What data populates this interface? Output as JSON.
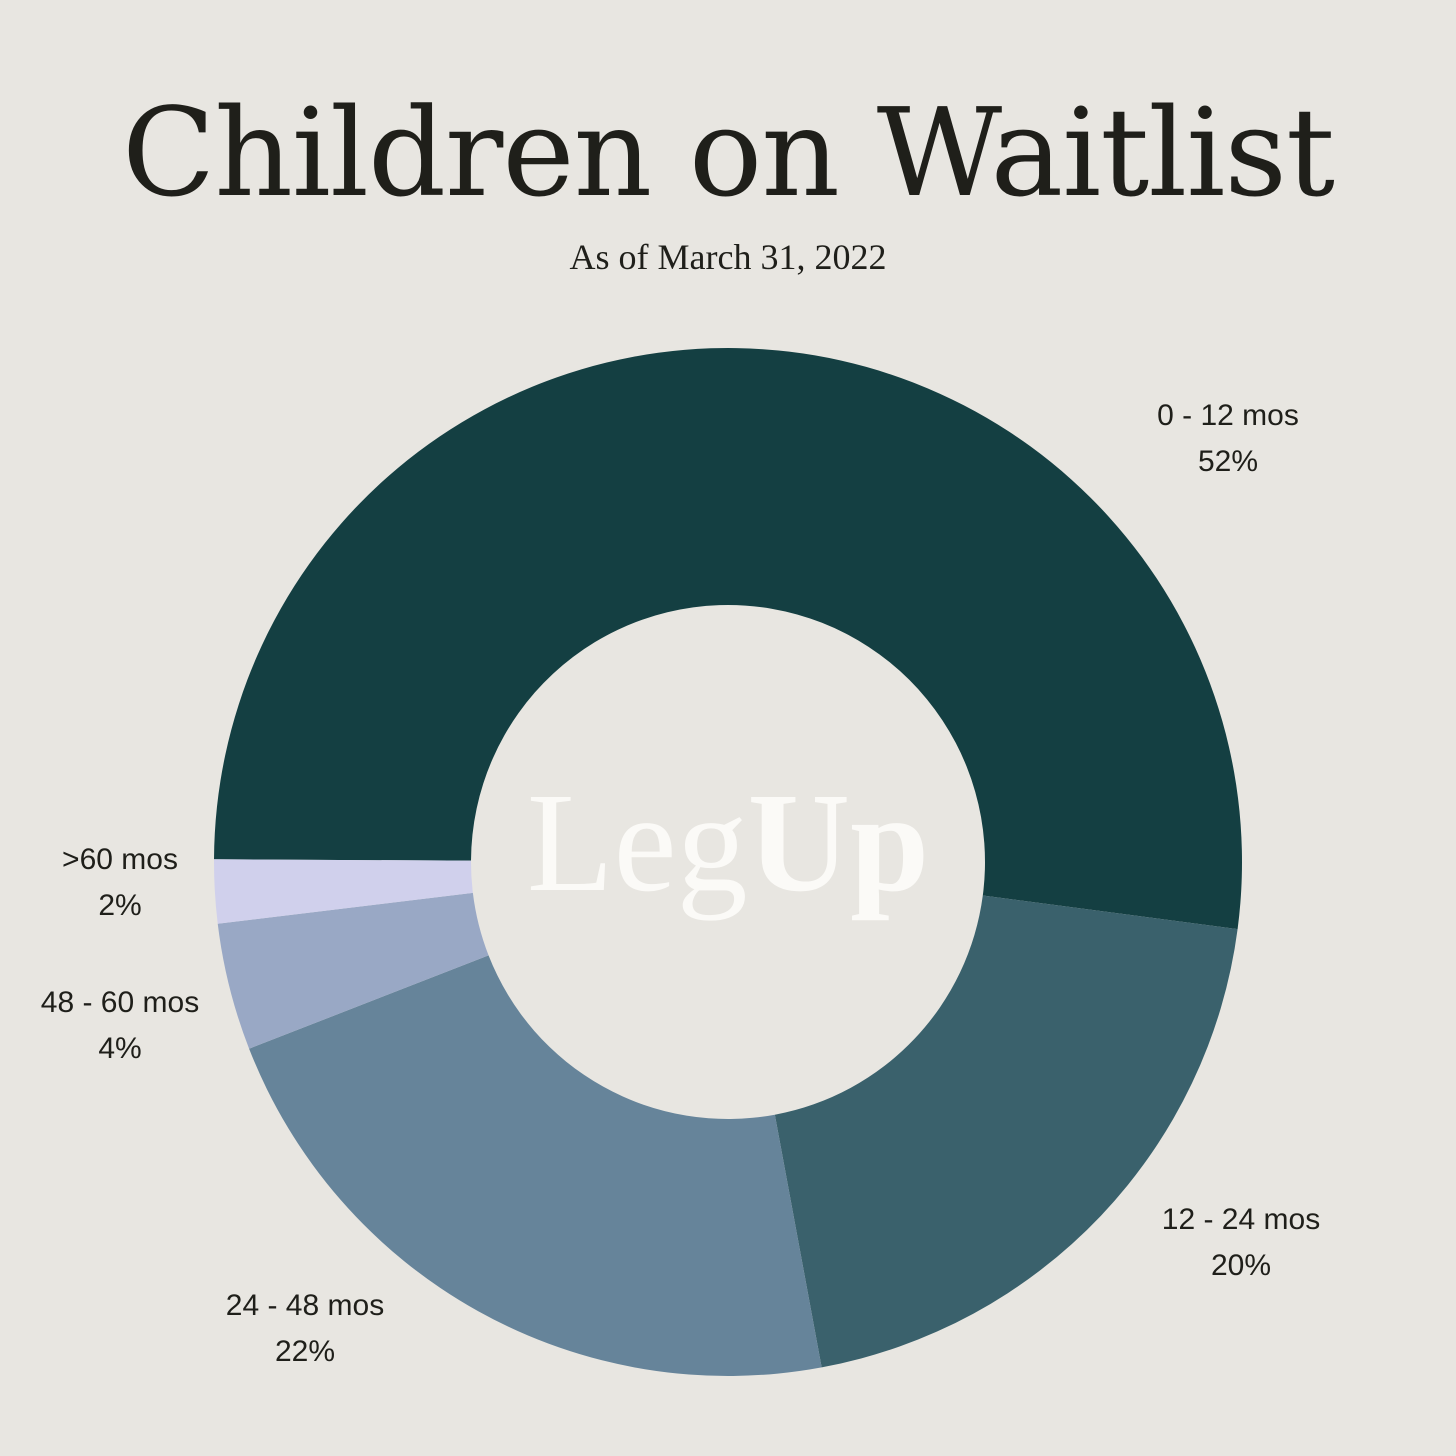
{
  "title": "Children on Waitlist",
  "subtitle": "As of March 31, 2022",
  "logo": {
    "part1": "Leg",
    "part2": "Up"
  },
  "colors": {
    "background": "#e8e6e1",
    "text": "#1f1f1a",
    "logo": "#fbfaf7"
  },
  "chart_data": {
    "type": "pie",
    "donut": true,
    "title": "Children on Waitlist",
    "subtitle": "As of March 31, 2022",
    "categories": [
      "0 - 12 mos",
      "12 - 24 mos",
      "24 - 48 mos",
      "48 - 60 mos",
      ">60 mos"
    ],
    "values": [
      52,
      20,
      22,
      4,
      2
    ],
    "value_labels": [
      "52%",
      "20%",
      "22%",
      "4%",
      "2%"
    ],
    "colors": [
      "#143f42",
      "#3a616c",
      "#66849a",
      "#99a8c5",
      "#d0d0ec"
    ],
    "legend": "none"
  }
}
